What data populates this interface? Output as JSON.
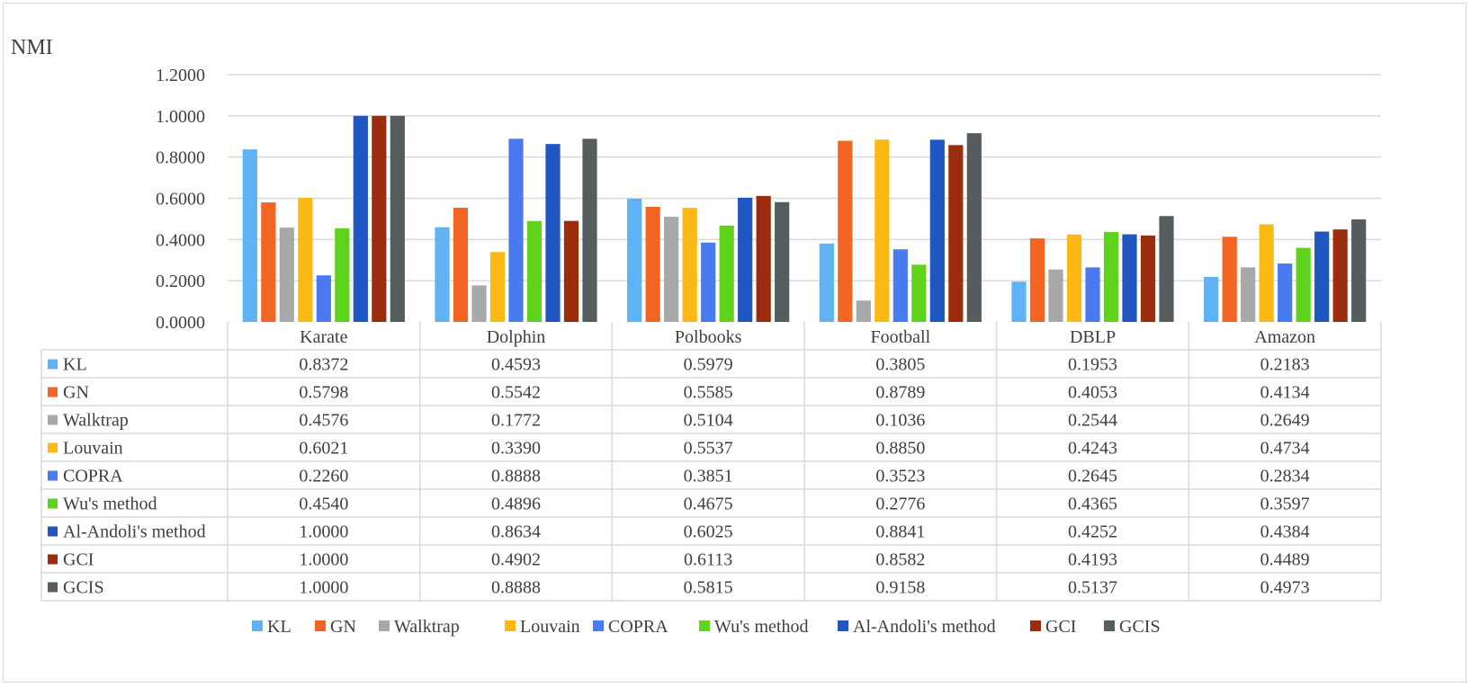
{
  "chart_data": {
    "type": "bar",
    "title": "NMI",
    "ylabel": "NMI",
    "xlabel": "",
    "ylim": [
      0,
      1.2
    ],
    "yticks": [
      "0.0000",
      "0.2000",
      "0.4000",
      "0.6000",
      "0.8000",
      "1.0000",
      "1.2000"
    ],
    "grid": true,
    "legend_position": "bottom",
    "categories": [
      "Karate",
      "Dolphin",
      "Polbooks",
      "Football",
      "DBLP",
      "Amazon"
    ],
    "series": [
      {
        "name": "KL",
        "color": "#5fb3f5",
        "values": [
          0.8372,
          0.4593,
          0.5979,
          0.3805,
          0.1953,
          0.2183
        ],
        "labels": [
          "0.8372",
          "0.4593",
          "0.5979",
          "0.3805",
          "0.1953",
          "0.2183"
        ]
      },
      {
        "name": "GN",
        "color": "#f26522",
        "values": [
          0.5798,
          0.5542,
          0.5585,
          0.8789,
          0.4053,
          0.4134
        ],
        "labels": [
          "0.5798",
          "0.5542",
          "0.5585",
          "0.8789",
          "0.4053",
          "0.4134"
        ]
      },
      {
        "name": "Walktrap",
        "color": "#a5a9a8",
        "values": [
          0.4576,
          0.1772,
          0.5104,
          0.1036,
          0.2544,
          0.2649
        ],
        "labels": [
          "0.4576",
          "0.1772",
          "0.5104",
          "0.1036",
          "0.2544",
          "0.2649"
        ]
      },
      {
        "name": "Louvain",
        "color": "#fdb913",
        "values": [
          0.6021,
          0.339,
          0.5537,
          0.885,
          0.4243,
          0.4734
        ],
        "labels": [
          "0.6021",
          "0.3390",
          "0.5537",
          "0.8850",
          "0.4243",
          "0.4734"
        ]
      },
      {
        "name": "COPRA",
        "color": "#4a7af0",
        "values": [
          0.226,
          0.8888,
          0.3851,
          0.3523,
          0.2645,
          0.2834
        ],
        "labels": [
          "0.2260",
          "0.8888",
          "0.3851",
          "0.3523",
          "0.2645",
          "0.2834"
        ]
      },
      {
        "name": "Wu's method",
        "color": "#5fd31b",
        "values": [
          0.454,
          0.4896,
          0.4675,
          0.2776,
          0.4365,
          0.3597
        ],
        "labels": [
          "0.4540",
          "0.4896",
          "0.4675",
          "0.2776",
          "0.4365",
          "0.3597"
        ]
      },
      {
        "name": "Al-Andoli's method",
        "color": "#1f56c2",
        "values": [
          1.0,
          0.8634,
          0.6025,
          0.8841,
          0.4252,
          0.4384
        ],
        "labels": [
          "1.0000",
          "0.8634",
          "0.6025",
          "0.8841",
          "0.4252",
          "0.4384"
        ]
      },
      {
        "name": "GCI",
        "color": "#9b2d0e",
        "values": [
          1.0,
          0.4902,
          0.6113,
          0.8582,
          0.4193,
          0.4489
        ],
        "labels": [
          "1.0000",
          "0.4902",
          "0.6113",
          "0.8582",
          "0.4193",
          "0.4489"
        ]
      },
      {
        "name": "GCIS",
        "color": "#555d5f",
        "values": [
          1.0,
          0.8888,
          0.5815,
          0.9158,
          0.5137,
          0.4973
        ],
        "labels": [
          "1.0000",
          "0.8888",
          "0.5815",
          "0.9158",
          "0.5137",
          "0.4973"
        ]
      }
    ]
  }
}
